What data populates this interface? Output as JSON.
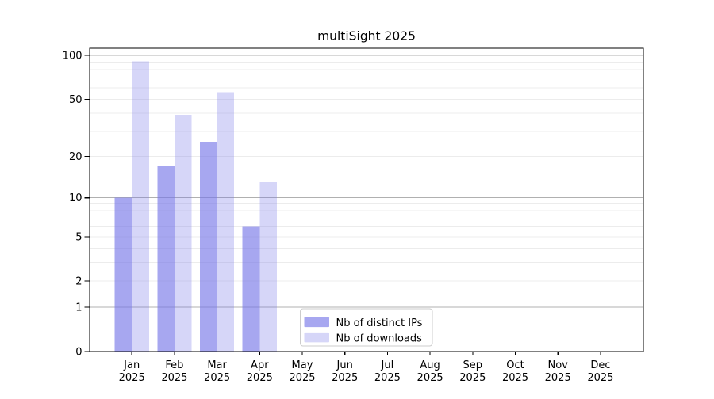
{
  "chart_data": {
    "type": "bar",
    "title": "multiSight 2025",
    "categories": [
      "Jan",
      "Feb",
      "Mar",
      "Apr",
      "May",
      "Jun",
      "Jul",
      "Aug",
      "Sep",
      "Oct",
      "Nov",
      "Dec"
    ],
    "category_year": "2025",
    "series": [
      {
        "name": "Nb of distinct IPs",
        "color": "#7878e8",
        "opacity": 0.65,
        "values": [
          10,
          17,
          25,
          6,
          null,
          null,
          null,
          null,
          null,
          null,
          null,
          null
        ]
      },
      {
        "name": "Nb of downloads",
        "color": "#7878e8",
        "opacity": 0.3,
        "values": [
          91,
          39,
          56,
          13,
          null,
          null,
          null,
          null,
          null,
          null,
          null,
          null
        ]
      }
    ],
    "yscale": "log1p",
    "ylim": [
      0,
      112
    ],
    "y_ticks": [
      0,
      1,
      2,
      5,
      10,
      20,
      50,
      100
    ],
    "y_grid_major": [
      1,
      10,
      100
    ],
    "y_grid_minor": [
      2,
      3,
      4,
      5,
      6,
      7,
      8,
      9,
      20,
      30,
      40,
      50,
      60,
      70,
      80,
      90
    ],
    "xlabel": "",
    "ylabel": "",
    "grid": true,
    "legend": {
      "position": "lower center"
    },
    "colors": {
      "grid_minor": "#ececec",
      "grid_major": "#b0b0b0",
      "spine": "#000000",
      "legend_border": "#cccccc",
      "legend_background": "#ffffff"
    }
  }
}
